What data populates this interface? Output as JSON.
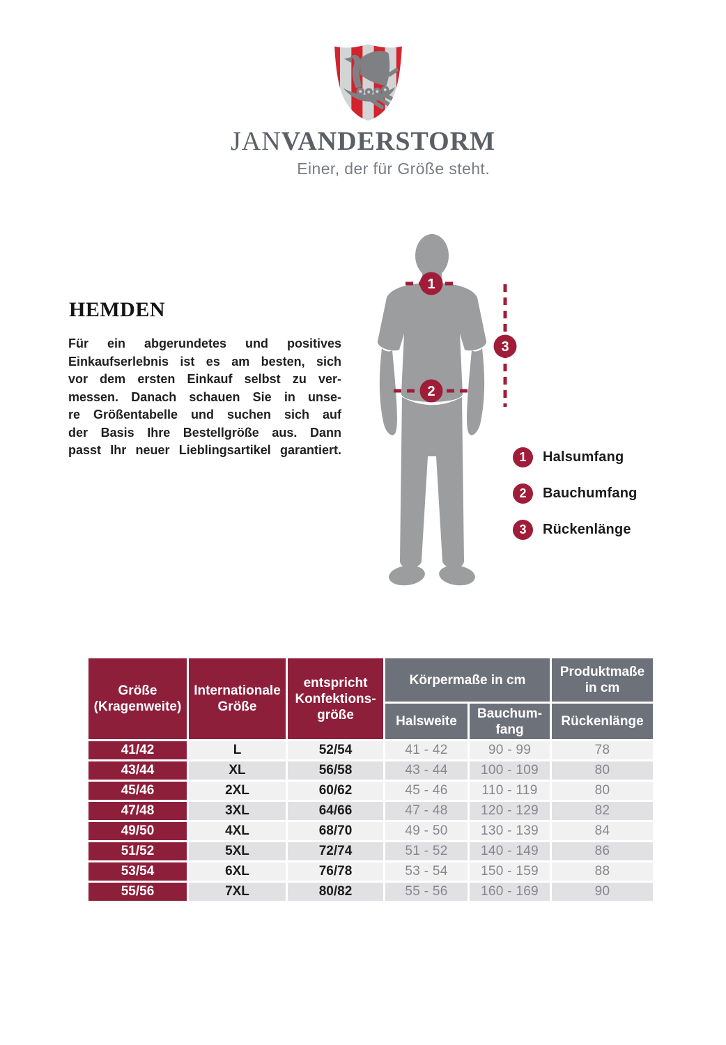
{
  "logo": {
    "shield_icon": "viking-longship-shield",
    "brand_jan": "JAN",
    "brand_vanderstorm": "VANDERSTORM",
    "tagline": "Einer, der für Größe steht.",
    "stripe_red": "#d2232e",
    "stripe_gray": "#d3d4d5",
    "ship_gray": "#7e8083",
    "wordmark_color": "#5b5f66",
    "tagline_color": "#787c82"
  },
  "intro": {
    "title": "HEMDEN",
    "lines": [
      "Für ein abgerundetes und positives",
      "Einkaufserlebnis ist es am besten, sich",
      "vor dem ersten Einkauf selbst zu ver-",
      "messen. Danach schauen Sie in unse-",
      "re Größentabelle und suchen sich auf",
      "der Basis Ihre Bestellgröße aus. Dann",
      "passt Ihr neuer Lieblingsartikel garantiert."
    ]
  },
  "measure": {
    "marker_color": "#a01d39",
    "silhouette_color": "#9c9d9e",
    "markers": [
      {
        "number": "1",
        "label": "Halsumfang"
      },
      {
        "number": "2",
        "label": "Bauchumfang"
      },
      {
        "number": "3",
        "label": "Rückenlänge"
      }
    ]
  },
  "size_table": {
    "header_red": "#8e1f3b",
    "header_gray": "#6d7179",
    "row_light": "#f1f1f2",
    "row_dark": "#e1e1e3",
    "columns": {
      "size": "Größe\n(Kragenweite)",
      "international": "Internationale\nGröße",
      "konfektion": "entspricht\nKonfektions-\ngröße",
      "group_koerpermasse": "Körpermaße in cm",
      "group_produktmasse": "Produktmaße\nin cm",
      "halsweite": "Halsweite",
      "bauchumfang": "Bauchum-\nfang",
      "rueckenlaenge": "Rückenlänge"
    },
    "rows": [
      {
        "size": "41/42",
        "int": "L",
        "konf": "52/54",
        "hals": "41 - 42",
        "bauch": "90 - 99",
        "ruecken": "78"
      },
      {
        "size": "43/44",
        "int": "XL",
        "konf": "56/58",
        "hals": "43 - 44",
        "bauch": "100 - 109",
        "ruecken": "80"
      },
      {
        "size": "45/46",
        "int": "2XL",
        "konf": "60/62",
        "hals": "45 - 46",
        "bauch": "110 - 119",
        "ruecken": "80"
      },
      {
        "size": "47/48",
        "int": "3XL",
        "konf": "64/66",
        "hals": "47 - 48",
        "bauch": "120 - 129",
        "ruecken": "82"
      },
      {
        "size": "49/50",
        "int": "4XL",
        "konf": "68/70",
        "hals": "49 - 50",
        "bauch": "130 - 139",
        "ruecken": "84"
      },
      {
        "size": "51/52",
        "int": "5XL",
        "konf": "72/74",
        "hals": "51 - 52",
        "bauch": "140 - 149",
        "ruecken": "86"
      },
      {
        "size": "53/54",
        "int": "6XL",
        "konf": "76/78",
        "hals": "53 - 54",
        "bauch": "150 - 159",
        "ruecken": "88"
      },
      {
        "size": "55/56",
        "int": "7XL",
        "konf": "80/82",
        "hals": "55 - 56",
        "bauch": "160 - 169",
        "ruecken": "90"
      }
    ]
  }
}
